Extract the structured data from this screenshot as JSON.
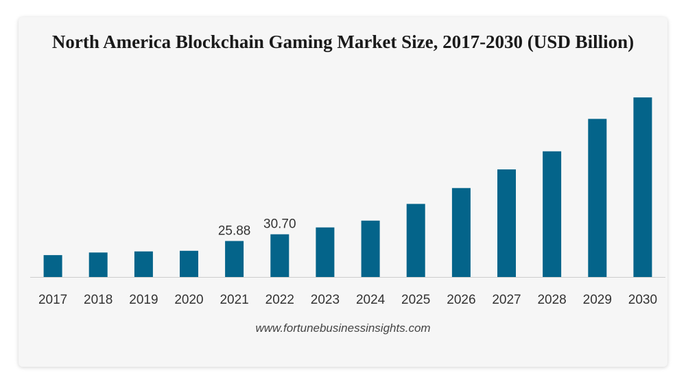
{
  "chart_data": {
    "type": "bar",
    "title": "North America Blockchain Gaming Market Size, 2017-2030 (USD Billion)",
    "xlabel": "",
    "ylabel": "",
    "categories": [
      "2017",
      "2018",
      "2019",
      "2020",
      "2021",
      "2022",
      "2023",
      "2024",
      "2025",
      "2026",
      "2027",
      "2028",
      "2029",
      "2030"
    ],
    "values": [
      15.7,
      17.6,
      18.4,
      18.8,
      25.88,
      30.7,
      35.6,
      40.5,
      52.5,
      63.9,
      77.3,
      90.3,
      113.6,
      129.0
    ],
    "data_labels": [
      "",
      "",
      "",
      "",
      "25.88",
      "30.70",
      "",
      "",
      "",
      "",
      "",
      "",
      "",
      ""
    ],
    "ylim": [
      0,
      134
    ],
    "grid": false,
    "legend": "none",
    "bar_color": "#04648a",
    "axis_color": "#cccccc"
  },
  "source": "www.fortunebusinessinsights.com"
}
